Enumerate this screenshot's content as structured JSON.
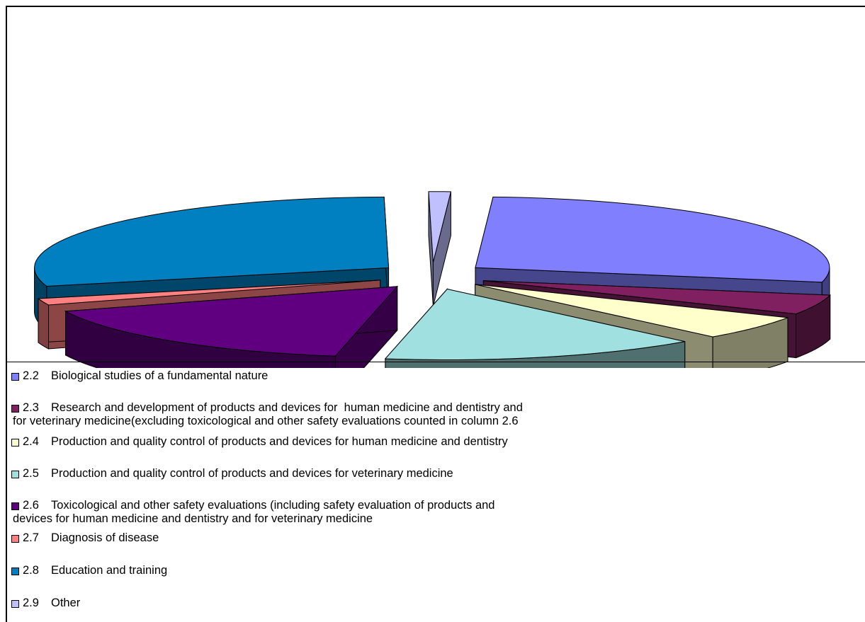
{
  "chart_data": {
    "type": "pie",
    "style": "3d-exploded",
    "title": "",
    "categories": [
      "2.2",
      "2.3",
      "2.4",
      "2.5",
      "2.6",
      "2.7",
      "2.8",
      "2.9"
    ],
    "values": [
      27.5,
      4.5,
      5.5,
      14.5,
      16.5,
      1.5,
      29.0,
      1.0
    ],
    "colors": [
      "#8080ff",
      "#802060",
      "#ffffcc",
      "#a0e0e0",
      "#600080",
      "#ff8080",
      "#0080c0",
      "#c0c0ff"
    ],
    "legend_position": "bottom",
    "legend": [
      {
        "num": "2.2",
        "text": "Biological studies of a fundamental nature",
        "color": "#8080ff"
      },
      {
        "num": "2.3",
        "text": "Research and development of products and devices for  human medicine and dentistry and",
        "text2": "for veterinary medicine(excluding toxicological and other safety evaluations counted in column 2.6",
        "color": "#802060"
      },
      {
        "num": "2.4",
        "text": "Production and quality control of products and devices for human medicine and dentistry",
        "color": "#ffffcc"
      },
      {
        "num": "2.5",
        "text": "Production and quality control of products and devices for veterinary medicine",
        "color": "#a0e0e0"
      },
      {
        "num": "2.6",
        "text": "Toxicological and other safety evaluations (including safety evaluation of products and",
        "text2": "devices for human medicine and dentistry and for veterinary medicine",
        "color": "#600080"
      },
      {
        "num": "2.7",
        "text": "Diagnosis of disease",
        "color": "#ff8080"
      },
      {
        "num": "2.8",
        "text": "Education and training",
        "color": "#0080c0"
      },
      {
        "num": "2.9",
        "text": "Other",
        "color": "#c0c0ff"
      }
    ]
  }
}
